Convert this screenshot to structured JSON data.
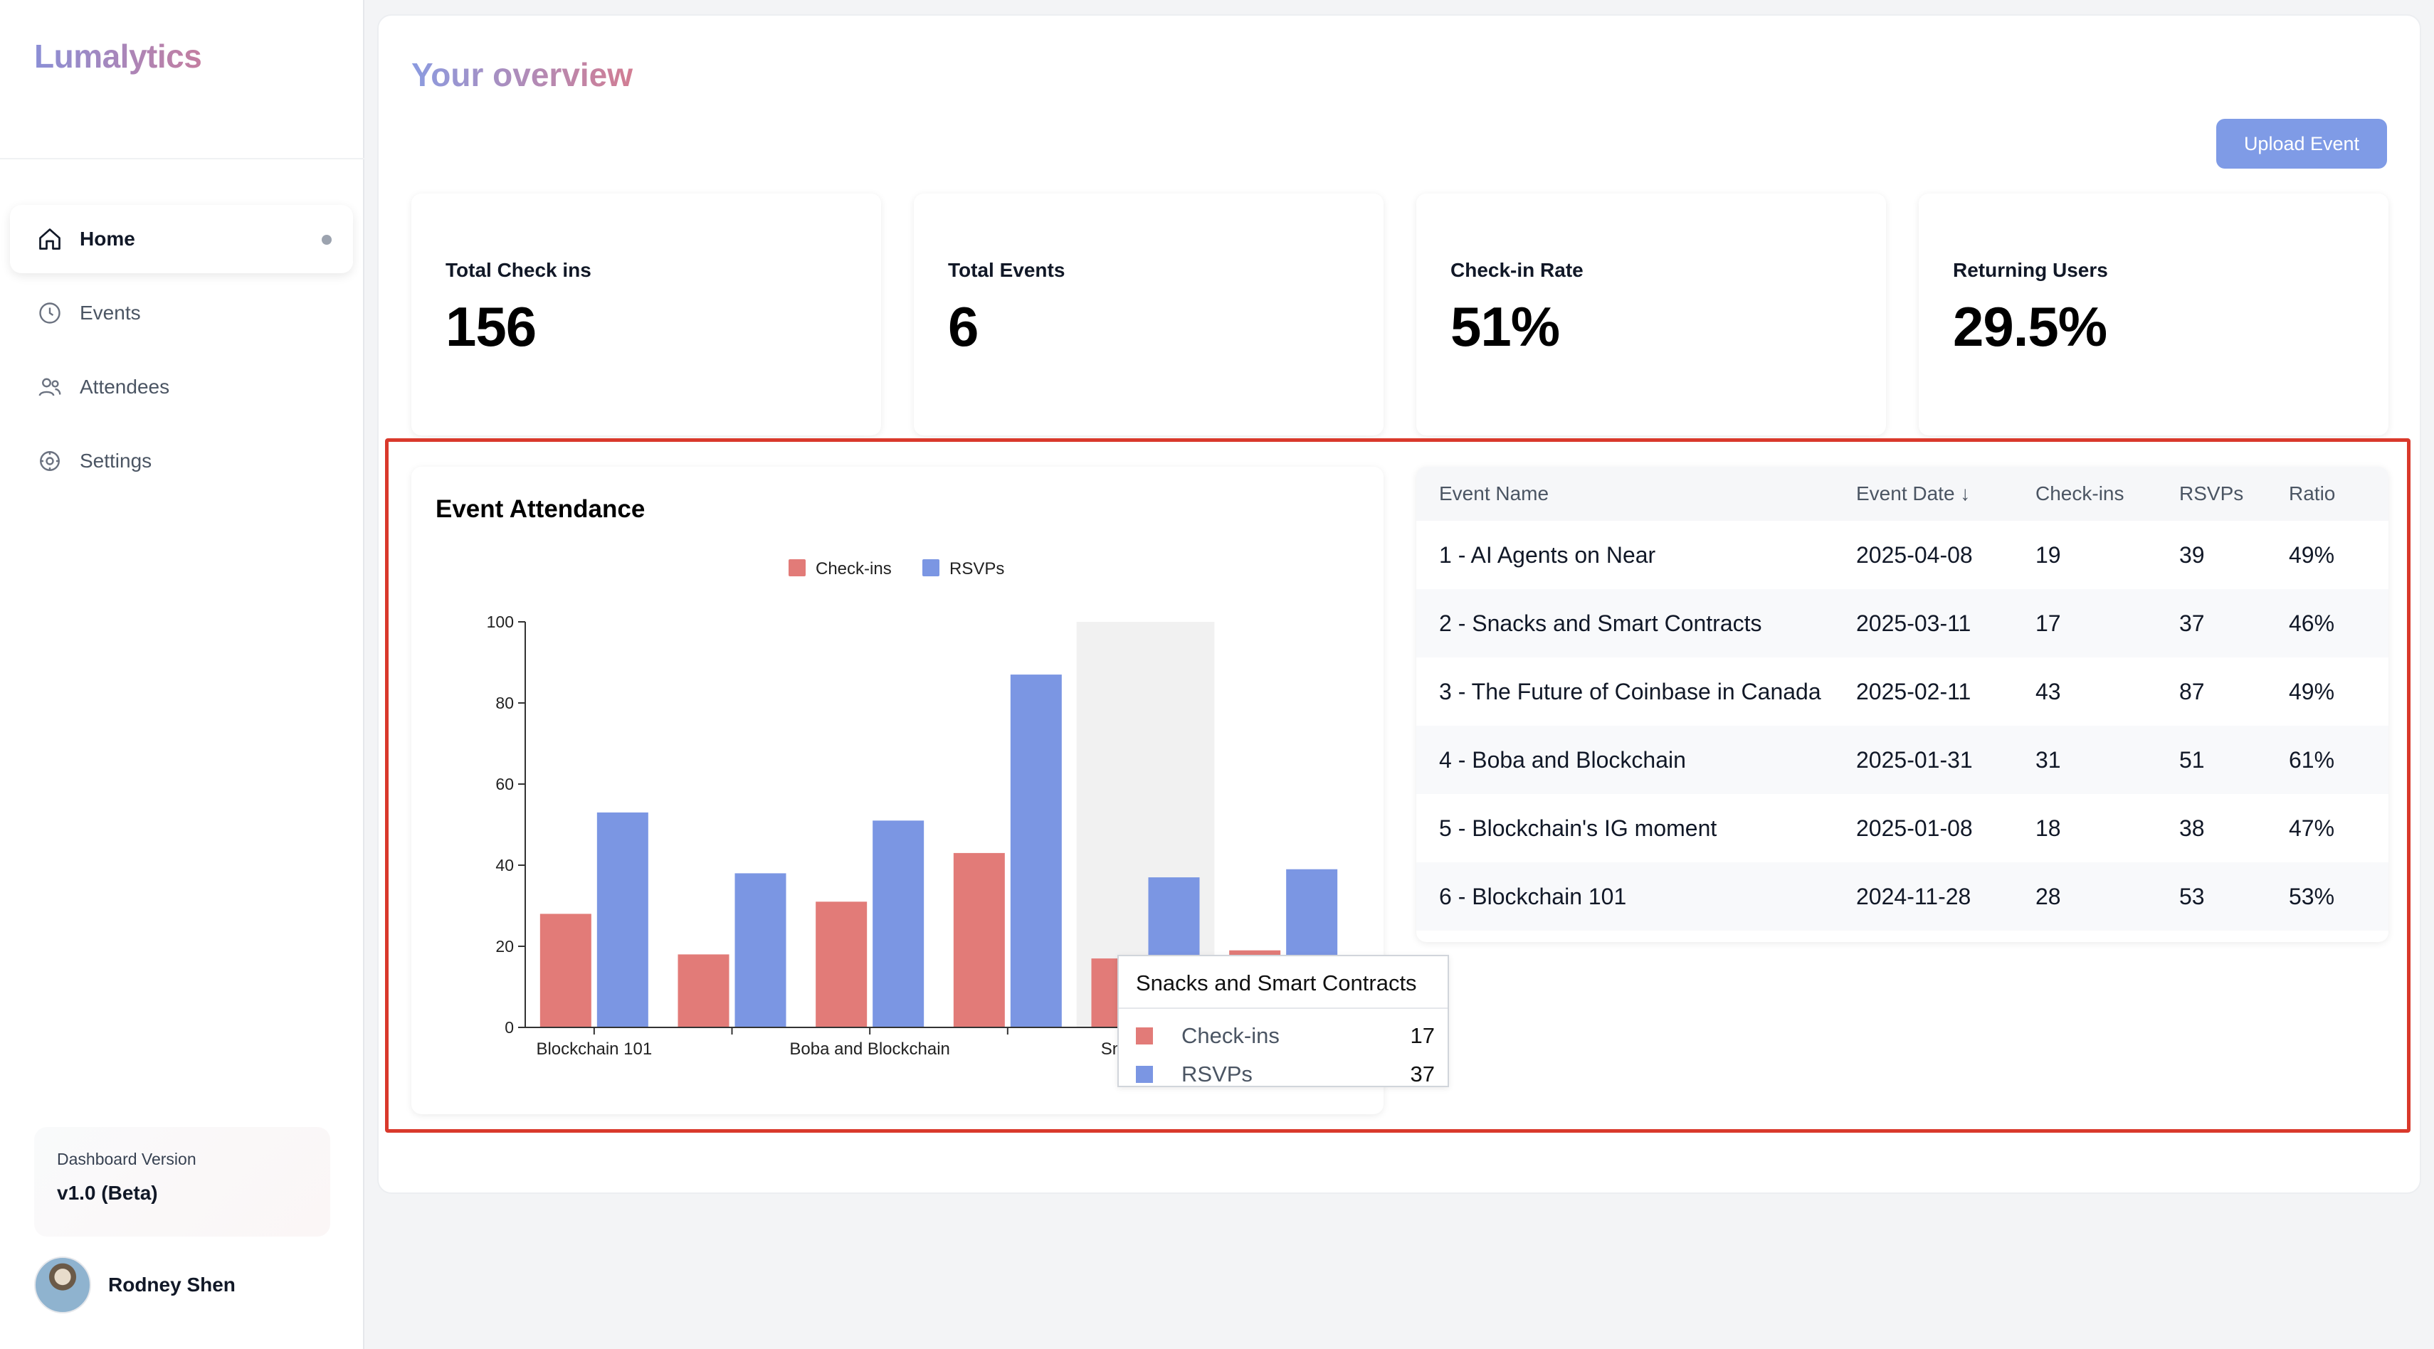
{
  "app": {
    "brand": "Lumalytics"
  },
  "sidebar": {
    "items": [
      {
        "label": "Home",
        "icon": "home-icon",
        "active": true
      },
      {
        "label": "Events",
        "icon": "clock-icon",
        "active": false
      },
      {
        "label": "Attendees",
        "icon": "users-icon",
        "active": false
      },
      {
        "label": "Settings",
        "icon": "gear-icon",
        "active": false
      }
    ],
    "version_label": "Dashboard Version",
    "version_value": "v1.0 (Beta)",
    "user_name": "Rodney Shen"
  },
  "header": {
    "title": "Your overview",
    "upload_label": "Upload Event"
  },
  "stats": [
    {
      "label": "Total Check ins",
      "value": "156"
    },
    {
      "label": "Total Events",
      "value": "6"
    },
    {
      "label": "Check-in Rate",
      "value": "51%"
    },
    {
      "label": "Returning Users",
      "value": "29.5%"
    }
  ],
  "colors": {
    "checkins": "#e27b78",
    "rsvps": "#7b96e3",
    "highlight": "#d9392c",
    "accent": "#7f9be6"
  },
  "chart_data": {
    "type": "bar",
    "title": "Event Attendance",
    "categories": [
      "Blockchain 101",
      "Blockchain's IG moment",
      "Boba and Blockchain",
      "The Future of Coinbase in Canada",
      "Snacks and Smart Contracts",
      "AI Agents on Near"
    ],
    "tick_labels": [
      "Blockchain 101",
      "",
      "Boba and Blockchain",
      "",
      "Snacks and",
      ""
    ],
    "series": [
      {
        "name": "Check-ins",
        "values": [
          28,
          18,
          31,
          43,
          17,
          19
        ]
      },
      {
        "name": "RSVPs",
        "values": [
          53,
          38,
          51,
          87,
          37,
          39
        ]
      }
    ],
    "ylim": [
      0,
      100
    ],
    "yticks": [
      0,
      20,
      40,
      60,
      80,
      100
    ],
    "legend": "top-center",
    "hovered_index": 4,
    "grid": false
  },
  "tooltip": {
    "title": "Snacks and Smart Contracts",
    "rows": [
      {
        "label": "Check-ins",
        "value": "17"
      },
      {
        "label": "RSVPs",
        "value": "37"
      }
    ]
  },
  "table": {
    "headers": [
      "Event Name",
      "Event Date ↓",
      "Check-ins",
      "RSVPs",
      "Ratio"
    ],
    "rows": [
      [
        "1 - AI Agents on Near",
        "2025-04-08",
        "19",
        "39",
        "49%"
      ],
      [
        "2 - Snacks and Smart Contracts",
        "2025-03-11",
        "17",
        "37",
        "46%"
      ],
      [
        "3 - The Future of Coinbase in Canada",
        "2025-02-11",
        "43",
        "87",
        "49%"
      ],
      [
        "4 - Boba and Blockchain",
        "2025-01-31",
        "31",
        "51",
        "61%"
      ],
      [
        "5 - Blockchain's IG moment",
        "2025-01-08",
        "18",
        "38",
        "47%"
      ],
      [
        "6 - Blockchain 101",
        "2024-11-28",
        "28",
        "53",
        "53%"
      ]
    ]
  }
}
